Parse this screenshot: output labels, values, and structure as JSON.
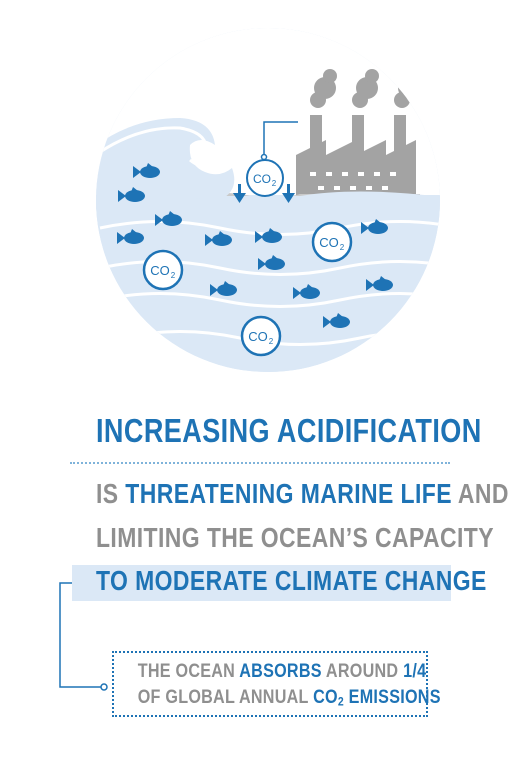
{
  "illustration": {
    "co2_label": "CO",
    "co2_sub": "2",
    "icons": [
      "wave-icon",
      "factory-icon",
      "fish-icon",
      "co2-bubble-icon",
      "down-arrow-icon"
    ]
  },
  "headline": {
    "line1": "INCREASING ACIDIFICATION",
    "line2_prefix": "IS ",
    "line2_highlight": "THREATENING MARINE LIFE",
    "line2_suffix": " AND",
    "line3": "LIMITING THE OCEAN’S CAPACITY",
    "line4": "TO MODERATE CLIMATE CHANGE"
  },
  "callout": {
    "line1_prefix": "THE OCEAN ",
    "line1_highlight": "ABSORBS",
    "line1_mid": " AROUND ",
    "line1_value": "1/4",
    "line2_prefix": "OF GLOBAL ANNUAL ",
    "line2_co2": "CO",
    "line2_co2_sub": "2",
    "line2_suffix": " EMISSIONS"
  },
  "colors": {
    "primary_blue": "#1e73b5",
    "light_blue": "#dbe8f6",
    "grey_text": "#8f8f8f",
    "factory_grey": "#a3a3a3"
  }
}
